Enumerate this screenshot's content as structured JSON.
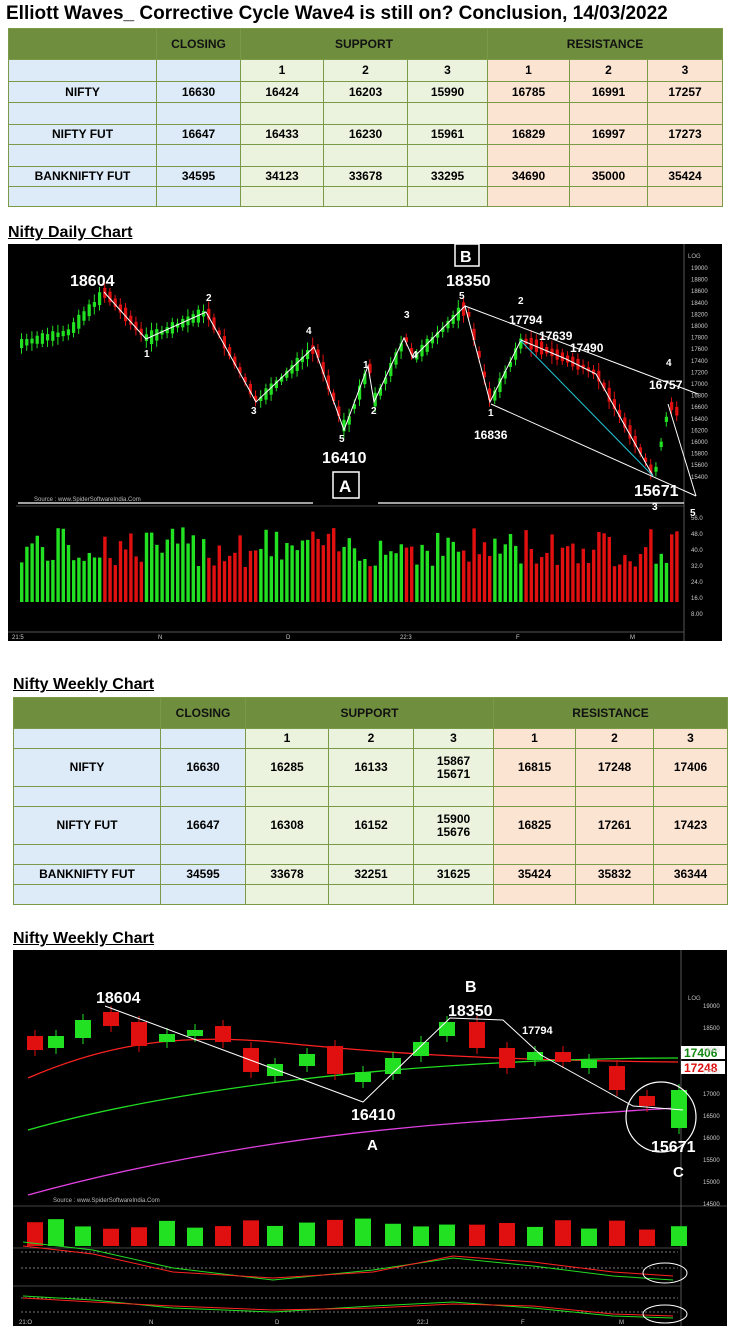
{
  "title": "Elliott Waves_ Corrective Cycle Wave4 is still on? Conclusion, 14/03/2022",
  "table_headers": {
    "closing": "CLOSING",
    "support": "SUPPORT",
    "resistance": "RESISTANCE",
    "levels": [
      "1",
      "2",
      "3",
      "1",
      "2",
      "3"
    ]
  },
  "daily_table": {
    "rows": [
      {
        "name": "NIFTY",
        "closing": "16630",
        "s1": "16424",
        "s2": "16203",
        "s3": "15990",
        "r1": "16785",
        "r2": "16991",
        "r3": "17257"
      },
      {
        "name": "NIFTY FUT",
        "closing": "16647",
        "s1": "16433",
        "s2": "16230",
        "s3": "15961",
        "r1": "16829",
        "r2": "16997",
        "r3": "17273"
      },
      {
        "name": "BANKNIFTY FUT",
        "closing": "34595",
        "s1": "34123",
        "s2": "33678",
        "s3": "33295",
        "r1": "34690",
        "r2": "35000",
        "r3": "35424"
      }
    ]
  },
  "daily_chart": {
    "heading": "Nifty Daily Chart",
    "source": "Source : www.SpiderSoftwareIndia.Com",
    "labels": {
      "high": "18604",
      "b_value": "18350",
      "b": "B",
      "a_value": "16410",
      "a": "A",
      "v17794": "17794",
      "v17639": "17639",
      "v17490": "17490",
      "v16757": "16757",
      "v16836": "16836",
      "v15671": "15671"
    },
    "wave_counts": [
      "1",
      "2",
      "3",
      "4",
      "5",
      "1",
      "2",
      "3",
      "4",
      "5",
      "2",
      "1",
      "3",
      "4",
      "5"
    ],
    "price_axis": [
      "19000",
      "18800",
      "18600",
      "18400",
      "18200",
      "18000",
      "17800",
      "17600",
      "17400",
      "17200",
      "17000",
      "16800",
      "16600",
      "16400",
      "16200",
      "16000",
      "15800",
      "15600",
      "15400"
    ],
    "volume_axis": [
      "56.0",
      "48.0",
      "40.0",
      "32.0",
      "24.0",
      "16.0",
      "8.00"
    ],
    "date_axis": [
      "21:5",
      "N",
      "D",
      "22:3",
      "F",
      "M"
    ],
    "tag": "LOG"
  },
  "weekly_table": {
    "heading": "Nifty Weekly Chart",
    "rows": [
      {
        "name": "NIFTY",
        "closing": "16630",
        "s1": "16285",
        "s2": "16133",
        "s3a": "15867",
        "s3b": "15671",
        "r1": "16815",
        "r2": "17248",
        "r3": "17406"
      },
      {
        "name": "NIFTY FUT",
        "closing": "16647",
        "s1": "16308",
        "s2": "16152",
        "s3a": "15900",
        "s3b": "15676",
        "r1": "16825",
        "r2": "17261",
        "r3": "17423"
      },
      {
        "name": "BANKNIFTY FUT",
        "closing": "34595",
        "s1": "33678",
        "s2": "32251",
        "s3a": "31625",
        "s3b": "",
        "r1": "35424",
        "r2": "35832",
        "r3": "36344"
      }
    ]
  },
  "weekly_chart": {
    "heading": "Nifty Weekly Chart",
    "source": "Source : www.SpiderSoftwareIndia.Com",
    "labels": {
      "high": "18604",
      "b": "B",
      "b_value": "18350",
      "v17794": "17794",
      "a_value": "16410",
      "a": "A",
      "c_value": "15671",
      "c": "C",
      "ma1": "17406",
      "ma2": "17248"
    },
    "price_axis": [
      "19000",
      "18500",
      "18000",
      "17500",
      "17000",
      "16500",
      "16000",
      "15500",
      "15000",
      "14500"
    ],
    "date_axis": [
      "21:O",
      "N",
      "D",
      "22:J",
      "F",
      "M"
    ],
    "tag": "LOG",
    "colors": {
      "ma_green": "#22dd22",
      "ma_red": "#ff2222",
      "ma_magenta": "#e040e0"
    }
  },
  "colors": {
    "header_green": "#6f8f3f",
    "cell_blue": "#dcebf7",
    "cell_green": "#ebf3de",
    "cell_peach": "#fce4d3",
    "candle_up": "#22e022",
    "candle_down": "#e01010"
  }
}
